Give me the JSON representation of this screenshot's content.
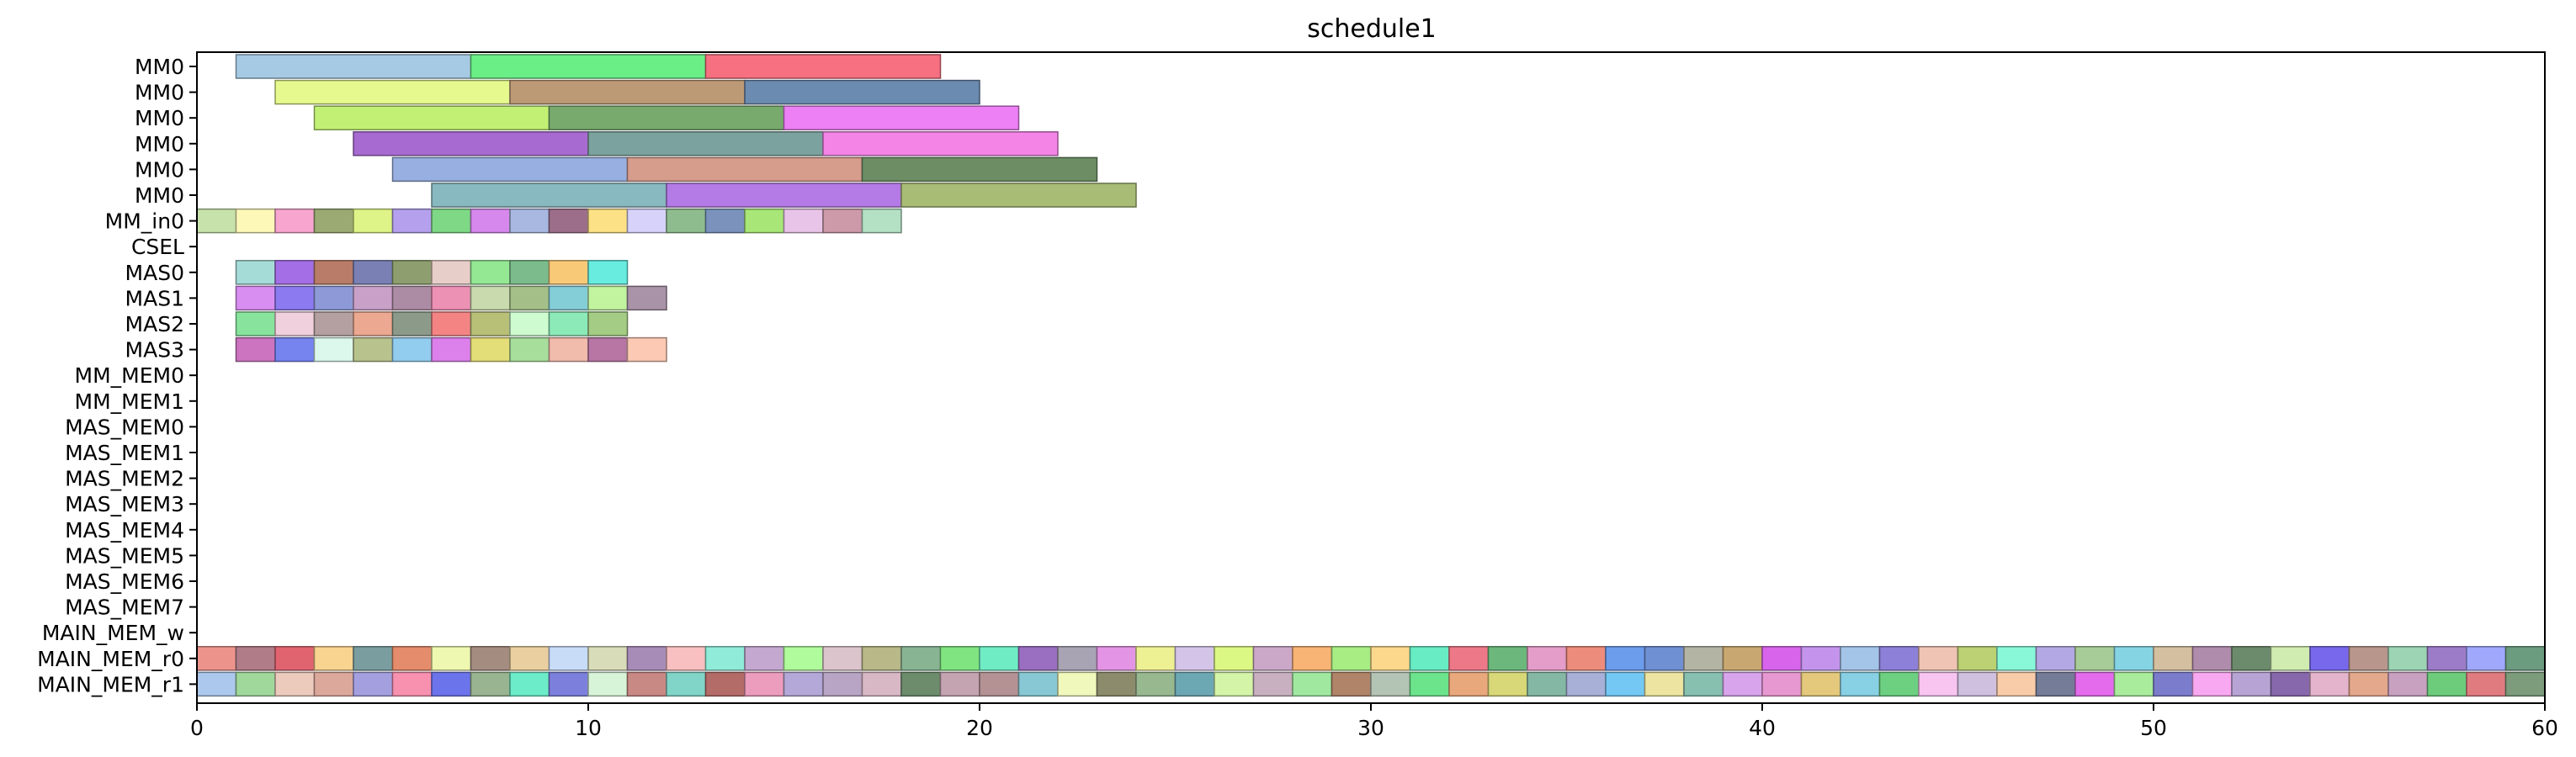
{
  "chart_data": {
    "type": "gantt",
    "title": "schedule1",
    "xlim": [
      0,
      60
    ],
    "x_ticks": [
      0,
      10,
      20,
      30,
      40,
      50,
      60
    ],
    "grid": false,
    "rows": [
      "MM0",
      "MM0",
      "MM0",
      "MM0",
      "MM0",
      "MM0",
      "MM_in0",
      "CSEL",
      "MAS0",
      "MAS1",
      "MAS2",
      "MAS3",
      "MM_MEM0",
      "MM_MEM1",
      "MAS_MEM0",
      "MAS_MEM1",
      "MAS_MEM2",
      "MAS_MEM3",
      "MAS_MEM4",
      "MAS_MEM5",
      "MAS_MEM6",
      "MAS_MEM7",
      "MAIN_MEM_w",
      "MAIN_MEM_r0",
      "MAIN_MEM_r1"
    ],
    "tasks": [
      {
        "row": 0,
        "start": 1,
        "end": 7,
        "color": "#a6cae4"
      },
      {
        "row": 0,
        "start": 7,
        "end": 13,
        "color": "#6aee86"
      },
      {
        "row": 0,
        "start": 13,
        "end": 19,
        "color": "#f77081"
      },
      {
        "row": 1,
        "start": 2,
        "end": 8,
        "color": "#e5f98e"
      },
      {
        "row": 1,
        "start": 8,
        "end": 14,
        "color": "#bd9a76"
      },
      {
        "row": 1,
        "start": 14,
        "end": 20,
        "color": "#6c8bb0"
      },
      {
        "row": 2,
        "start": 3,
        "end": 9,
        "color": "#c2f074"
      },
      {
        "row": 2,
        "start": 9,
        "end": 15,
        "color": "#78aa6e"
      },
      {
        "row": 2,
        "start": 15,
        "end": 21,
        "color": "#ec80f4"
      },
      {
        "row": 3,
        "start": 4,
        "end": 10,
        "color": "#a76ad0"
      },
      {
        "row": 3,
        "start": 10,
        "end": 16,
        "color": "#7ba29e"
      },
      {
        "row": 3,
        "start": 16,
        "end": 22,
        "color": "#f484e6"
      },
      {
        "row": 4,
        "start": 5,
        "end": 11,
        "color": "#98b0e1"
      },
      {
        "row": 4,
        "start": 11,
        "end": 17,
        "color": "#d69c8c"
      },
      {
        "row": 4,
        "start": 17,
        "end": 23,
        "color": "#6d8e64"
      },
      {
        "row": 5,
        "start": 6,
        "end": 12,
        "color": "#88b8c0"
      },
      {
        "row": 5,
        "start": 12,
        "end": 18,
        "color": "#b47ae6"
      },
      {
        "row": 5,
        "start": 18,
        "end": 24,
        "color": "#a8bc76"
      }
    ],
    "unit_rows": [
      {
        "row": 6,
        "start": 0,
        "colors": [
          "#c8e2ac",
          "#fdf8b8",
          "#f8a6d0",
          "#9aaa72",
          "#def488",
          "#b4a0ec",
          "#7ed886",
          "#d688ec",
          "#a8b8e0",
          "#9c6e8a",
          "#fce186",
          "#d7d2fa",
          "#8fbc8f",
          "#7a92bc",
          "#a8e678",
          "#e8c5e8",
          "#cc9aa8",
          "#b4e0c4"
        ]
      },
      {
        "row": 8,
        "start": 1,
        "colors": [
          "#a6dcd8",
          "#a46ee6",
          "#b87c68",
          "#7a80b4",
          "#8e9e6e",
          "#e8cec8",
          "#94e894",
          "#7cbc8c",
          "#f8ca78",
          "#68ece0"
        ]
      },
      {
        "row": 9,
        "start": 1,
        "colors": [
          "#d88ef0",
          "#8c7af0",
          "#8e9ad8",
          "#c8a0c8",
          "#ac8ca4",
          "#ec90b4",
          "#c8daae",
          "#a4c088",
          "#84ced8",
          "#c2f4a0",
          "#a893a8"
        ]
      },
      {
        "row": 10,
        "start": 1,
        "colors": [
          "#88e49c",
          "#f0d0dc",
          "#b4a0a0",
          "#eca890",
          "#8c9a8a",
          "#f48484",
          "#b8c078",
          "#cefcd0",
          "#8ceab8",
          "#a4cc84"
        ]
      },
      {
        "row": 11,
        "start": 1,
        "colors": [
          "#cc74c0",
          "#7684f0",
          "#dcf8ec",
          "#b8c28c",
          "#92ccee",
          "#dc80ec",
          "#e4de78",
          "#a8de9c",
          "#f2bcac",
          "#b876a4",
          "#fccab4"
        ]
      },
      {
        "row": 23,
        "start": 0,
        "colors": [
          "#ec948c",
          "#b07c88",
          "#e06470",
          "#f8d490",
          "#7a9ea0",
          "#e48c6c",
          "#eef8b0",
          "#a48c80",
          "#ead0a0",
          "#c8dcf8",
          "#d8dcb8",
          "#a88cb8",
          "#f8c0c0",
          "#90ecd8",
          "#c4a8d0",
          "#b0fc9c",
          "#dcc4cc",
          "#b8b888",
          "#88b494",
          "#80e480",
          "#70ecc4",
          "#9a6ec0",
          "#a8a4b4",
          "#e494e4",
          "#eef094",
          "#d4c4e8",
          "#dcf884",
          "#cca8c8",
          "#f8b474",
          "#a8ec84",
          "#fcd88c",
          "#68ecc4",
          "#ec7888",
          "#6cb87c",
          "#e49cc8",
          "#ec8c7c",
          "#6c9cec",
          "#7090d4",
          "#b4b4a4",
          "#c8a870",
          "#d864ec",
          "#c494ec",
          "#a4c4e8",
          "#8c80d8",
          "#f0c4b4",
          "#bcd074",
          "#88f8d8",
          "#b4a8e4",
          "#a8cc98",
          "#84d4e4",
          "#d4c0a0",
          "#b08cac",
          "#6c8a6c",
          "#d0ecb0",
          "#7868ec",
          "#b8968c",
          "#9cd4b4",
          "#9c7cc8",
          "#a0a8fc",
          "#6c9c80"
        ]
      },
      {
        "row": 24,
        "start": 0,
        "colors": [
          "#acc8ec",
          "#a0d89c",
          "#eccabc",
          "#dca89c",
          "#a4a0e0",
          "#f890b0",
          "#6c74ec",
          "#98b490",
          "#6cecc8",
          "#7c80dc",
          "#d8f4d8",
          "#c88884",
          "#80d4c8",
          "#b46c68",
          "#ec9cbc",
          "#b4a8d8",
          "#b8a4c4",
          "#d8b8c4",
          "#6c8c6c",
          "#c4a4b0",
          "#b49294",
          "#88c8d4",
          "#f0f8bc",
          "#8c8c6c",
          "#98b890",
          "#6ca8b4",
          "#d4f4a8",
          "#c8b0c0",
          "#a0e8a0",
          "#b08468",
          "#b4c4b4",
          "#6ce48c",
          "#e8a87c",
          "#d8d878",
          "#84b8a4",
          "#a8b0d8",
          "#74c8f4",
          "#ece4a0",
          "#88c0b0",
          "#d8a4ec",
          "#e898d0",
          "#e4c87c",
          "#88d0e4",
          "#6cd080",
          "#f8c4f0",
          "#d0c0e0",
          "#f8cca8",
          "#747c98",
          "#e46cec",
          "#a8ec9c",
          "#7c7ccc",
          "#f8a8f0",
          "#b8a4d4",
          "#8868ac",
          "#e4b4cc",
          "#e4a88c",
          "#c8a0c0",
          "#6ccc7c",
          "#e07c80",
          "#7c9c7c"
        ]
      }
    ]
  }
}
